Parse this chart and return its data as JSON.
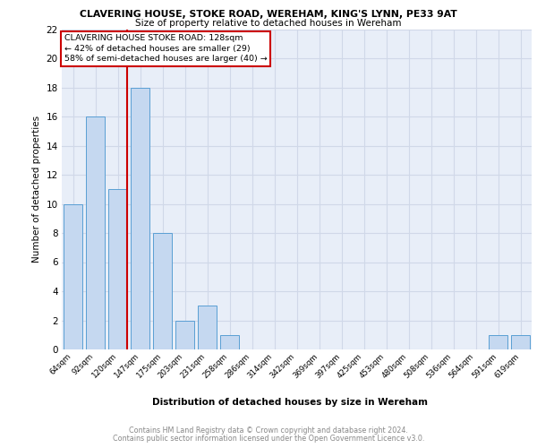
{
  "title": "CLAVERING HOUSE, STOKE ROAD, WEREHAM, KING'S LYNN, PE33 9AT",
  "subtitle": "Size of property relative to detached houses in Wereham",
  "xlabel": "Distribution of detached houses by size in Wereham",
  "ylabel": "Number of detached properties",
  "categories": [
    "64sqm",
    "92sqm",
    "120sqm",
    "147sqm",
    "175sqm",
    "203sqm",
    "231sqm",
    "258sqm",
    "286sqm",
    "314sqm",
    "342sqm",
    "369sqm",
    "397sqm",
    "425sqm",
    "453sqm",
    "480sqm",
    "508sqm",
    "536sqm",
    "564sqm",
    "591sqm",
    "619sqm"
  ],
  "values": [
    10,
    16,
    11,
    18,
    8,
    2,
    3,
    1,
    0,
    0,
    0,
    0,
    0,
    0,
    0,
    0,
    0,
    0,
    0,
    1,
    1
  ],
  "bar_color": "#c5d8f0",
  "bar_edge_color": "#5a9fd4",
  "vline_x": 2.425,
  "marker_label_line1": "CLAVERING HOUSE STOKE ROAD: 128sqm",
  "marker_label_line2": "← 42% of detached houses are smaller (29)",
  "marker_label_line3": "58% of semi-detached houses are larger (40) →",
  "ylim": [
    0,
    22
  ],
  "yticks": [
    0,
    2,
    4,
    6,
    8,
    10,
    12,
    14,
    16,
    18,
    20,
    22
  ],
  "vline_color": "#cc0000",
  "annotation_box_edge": "#cc0000",
  "grid_color": "#d0d8e8",
  "bg_color": "#e8eef8",
  "footer_line1": "Contains HM Land Registry data © Crown copyright and database right 2024.",
  "footer_line2": "Contains public sector information licensed under the Open Government Licence v3.0."
}
